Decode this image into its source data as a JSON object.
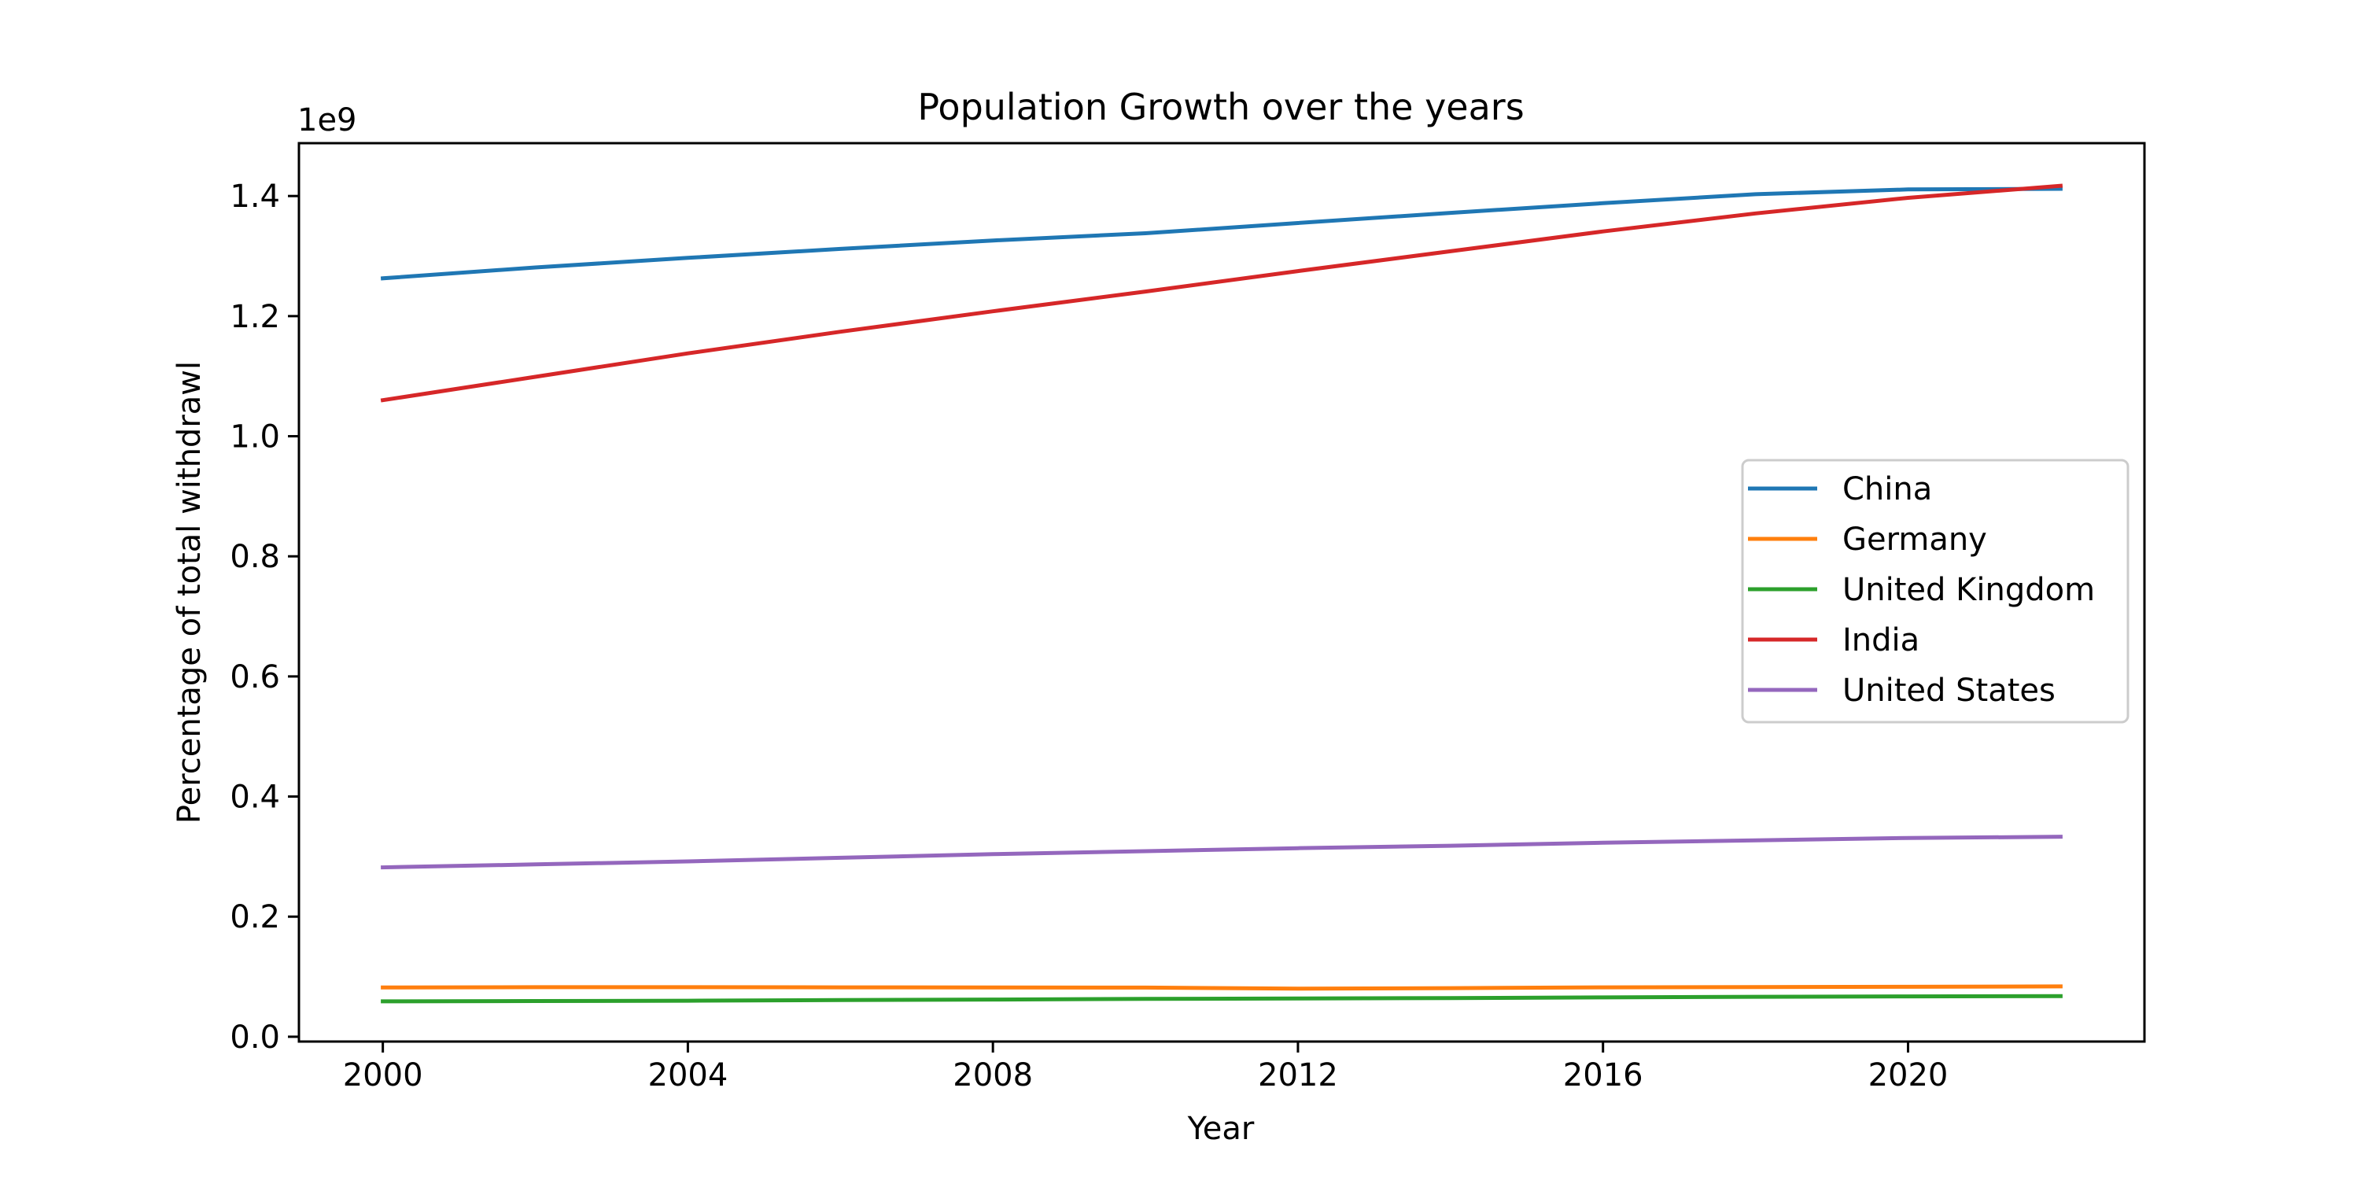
{
  "chart_data": {
    "type": "line",
    "title": "Population Growth over the years",
    "xlabel": "Year",
    "ylabel": "Percentage of total withdrawl",
    "y_offset_label": "1e9",
    "xlim": [
      1998.9,
      2023.1
    ],
    "ylim": [
      -0.008,
      1.488
    ],
    "xticks": [
      2000,
      2004,
      2008,
      2012,
      2016,
      2020
    ],
    "xtick_labels": [
      "2000",
      "2004",
      "2008",
      "2012",
      "2016",
      "2020"
    ],
    "yticks": [
      0.0,
      0.2,
      0.4,
      0.6,
      0.8,
      1.0,
      1.2,
      1.4
    ],
    "ytick_labels": [
      "0.0",
      "0.2",
      "0.4",
      "0.6",
      "0.8",
      "1.0",
      "1.2",
      "1.4"
    ],
    "grid": false,
    "legend_position": "center-right",
    "x": [
      2000,
      2002,
      2004,
      2006,
      2008,
      2010,
      2012,
      2014,
      2016,
      2018,
      2020,
      2022
    ],
    "series": [
      {
        "name": "China",
        "color": "#1f77b4",
        "values": [
          1.263,
          1.281,
          1.297,
          1.312,
          1.326,
          1.338,
          1.355,
          1.372,
          1.388,
          1.403,
          1.411,
          1.412
        ]
      },
      {
        "name": "Germany",
        "color": "#ff7f0e",
        "values": [
          0.082,
          0.0825,
          0.0825,
          0.0823,
          0.082,
          0.0818,
          0.08,
          0.081,
          0.0823,
          0.0828,
          0.0832,
          0.0838
        ]
      },
      {
        "name": "United Kingdom",
        "color": "#2ca02c",
        "values": [
          0.059,
          0.0595,
          0.06,
          0.061,
          0.062,
          0.063,
          0.0637,
          0.0645,
          0.0655,
          0.0665,
          0.0672,
          0.0677
        ]
      },
      {
        "name": "India",
        "color": "#d62728",
        "values": [
          1.06,
          1.099,
          1.138,
          1.174,
          1.208,
          1.241,
          1.275,
          1.308,
          1.341,
          1.371,
          1.397,
          1.417
        ]
      },
      {
        "name": "United States",
        "color": "#9467bd",
        "values": [
          0.282,
          0.287,
          0.292,
          0.298,
          0.304,
          0.309,
          0.314,
          0.318,
          0.323,
          0.327,
          0.331,
          0.333
        ]
      }
    ]
  }
}
